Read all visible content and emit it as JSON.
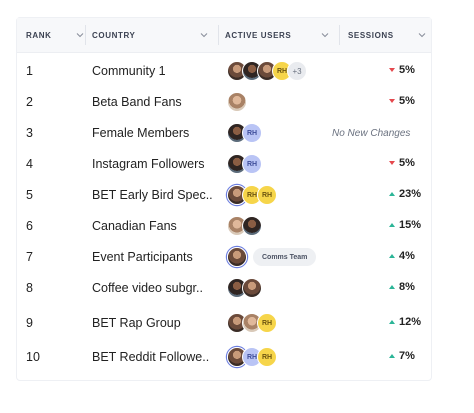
{
  "columns": {
    "rank": "RANK",
    "country": "COUNTRY",
    "active_users": "ACTIVE USERS",
    "sessions": "SESSIONS"
  },
  "icons": {
    "sort": "chevron-down-icon",
    "trend_up": "arrow-up-icon",
    "trend_down": "arrow-down-icon"
  },
  "colors": {
    "trend_up": "#2bb597",
    "trend_down": "#e5484d",
    "avatar_rh_blue": "#b9c4f5",
    "avatar_rh_yellow": "#f6d54a"
  },
  "rows": [
    {
      "rank": "1",
      "country": "Community 1",
      "avatars": [
        {
          "kind": "photo"
        },
        {
          "kind": "photo3"
        },
        {
          "kind": "photo"
        },
        {
          "kind": "rh-yellow",
          "initials": "RH"
        },
        {
          "kind": "plus",
          "initials": "+3"
        }
      ],
      "sessions": "5%",
      "trend": "down"
    },
    {
      "rank": "2",
      "country": "Beta Band Fans",
      "avatars": [
        {
          "kind": "photo2"
        }
      ],
      "sessions": "5%",
      "trend": "down"
    },
    {
      "rank": "3",
      "country": "Female Members",
      "avatars": [
        {
          "kind": "photo3"
        },
        {
          "kind": "rh-blue",
          "initials": "RH"
        }
      ],
      "sessions": "No New Changes",
      "trend": "none"
    },
    {
      "rank": "4",
      "country": "Instagram Followers",
      "avatars": [
        {
          "kind": "photo3"
        },
        {
          "kind": "rh-blue",
          "initials": "RH"
        }
      ],
      "sessions": "5%",
      "trend": "down"
    },
    {
      "rank": "5",
      "country": "BET Early Bird Spec..",
      "avatars": [
        {
          "kind": "photo",
          "ring": true
        },
        {
          "kind": "rh-yellow",
          "initials": "RH"
        },
        {
          "kind": "rh-yellow",
          "initials": "RH"
        }
      ],
      "sessions": "23%",
      "trend": "up"
    },
    {
      "rank": "6",
      "country": "Canadian Fans",
      "avatars": [
        {
          "kind": "photo2"
        },
        {
          "kind": "photo3"
        }
      ],
      "sessions": "15%",
      "trend": "up"
    },
    {
      "rank": "7",
      "country": "Event Participants",
      "avatars": [
        {
          "kind": "photo",
          "ring": true
        }
      ],
      "tag": "Comms Team",
      "sessions": "4%",
      "trend": "up"
    },
    {
      "rank": "8",
      "country": "Coffee video subgr..",
      "avatars": [
        {
          "kind": "photo3"
        },
        {
          "kind": "photo"
        }
      ],
      "sessions": "8%",
      "trend": "up"
    },
    {
      "rank": "9",
      "country": "BET Rap Group",
      "avatars": [
        {
          "kind": "photo"
        },
        {
          "kind": "photo2"
        },
        {
          "kind": "rh-yellow",
          "initials": "RH"
        }
      ],
      "sessions": "12%",
      "trend": "up"
    },
    {
      "rank": "10",
      "country": "BET Reddit Followe..",
      "avatars": [
        {
          "kind": "photo",
          "ring": true
        },
        {
          "kind": "rh-blue",
          "initials": "RH"
        },
        {
          "kind": "rh-yellow",
          "initials": "RH"
        }
      ],
      "sessions": "7%",
      "trend": "up"
    }
  ]
}
